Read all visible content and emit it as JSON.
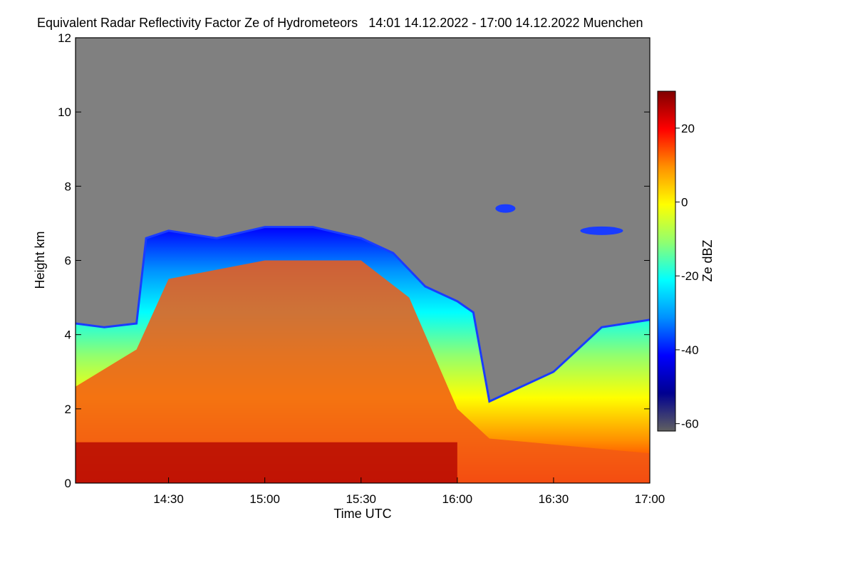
{
  "chart_data": {
    "type": "heatmap",
    "title": "Equivalent Radar Reflectivity Factor Ze of Hydrometeors",
    "time_range": "14:01 14.12.2022 - 17:00 14.12.2022",
    "location": "Muenchen",
    "xlabel": "Time UTC",
    "ylabel": "Height km",
    "colorbar_label": "Ze dBZ",
    "x_range": [
      "14:01",
      "17:00"
    ],
    "x_ticks": [
      "14:30",
      "15:00",
      "15:30",
      "16:00",
      "16:30",
      "17:00"
    ],
    "ylim": [
      0,
      12
    ],
    "y_ticks": [
      "0",
      "2",
      "4",
      "6",
      "8",
      "10",
      "12"
    ],
    "colorbar_range": [
      -62,
      30
    ],
    "colorbar_ticks": [
      "20",
      "0",
      "-20",
      "-40",
      "-60"
    ],
    "no_signal_color": "#808080",
    "colormap": [
      "#000090",
      "#0000ff",
      "#0090ff",
      "#00ffff",
      "#90ff70",
      "#ffff00",
      "#ff9000",
      "#ff0000",
      "#800000"
    ],
    "echo_top_km": [
      {
        "time": "14:01",
        "top": 4.3
      },
      {
        "time": "14:10",
        "top": 4.2
      },
      {
        "time": "14:20",
        "top": 4.3
      },
      {
        "time": "14:23",
        "top": 6.6
      },
      {
        "time": "14:30",
        "top": 6.8
      },
      {
        "time": "14:45",
        "top": 6.6
      },
      {
        "time": "15:00",
        "top": 6.9
      },
      {
        "time": "15:15",
        "top": 6.9
      },
      {
        "time": "15:30",
        "top": 6.6
      },
      {
        "time": "15:40",
        "top": 6.2
      },
      {
        "time": "15:50",
        "top": 5.3
      },
      {
        "time": "16:00",
        "top": 4.9
      },
      {
        "time": "16:05",
        "top": 4.6
      },
      {
        "time": "16:10",
        "top": 2.2
      },
      {
        "time": "16:30",
        "top": 3.0
      },
      {
        "time": "16:45",
        "top": 4.2
      },
      {
        "time": "17:00",
        "top": 4.4
      }
    ],
    "core_top_km": [
      {
        "time": "14:01",
        "top": 2.6
      },
      {
        "time": "14:20",
        "top": 3.6
      },
      {
        "time": "14:30",
        "top": 5.5
      },
      {
        "time": "15:00",
        "top": 6.0
      },
      {
        "time": "15:30",
        "top": 6.0
      },
      {
        "time": "15:45",
        "top": 5.0
      },
      {
        "time": "15:55",
        "top": 3.0
      },
      {
        "time": "16:00",
        "top": 2.0
      },
      {
        "time": "16:10",
        "top": 1.2
      },
      {
        "time": "17:00",
        "top": 0.8
      }
    ],
    "upper_echoes": [
      {
        "time": "16:15",
        "height": 7.4
      },
      {
        "time": "16:45",
        "height": 6.8
      }
    ]
  }
}
